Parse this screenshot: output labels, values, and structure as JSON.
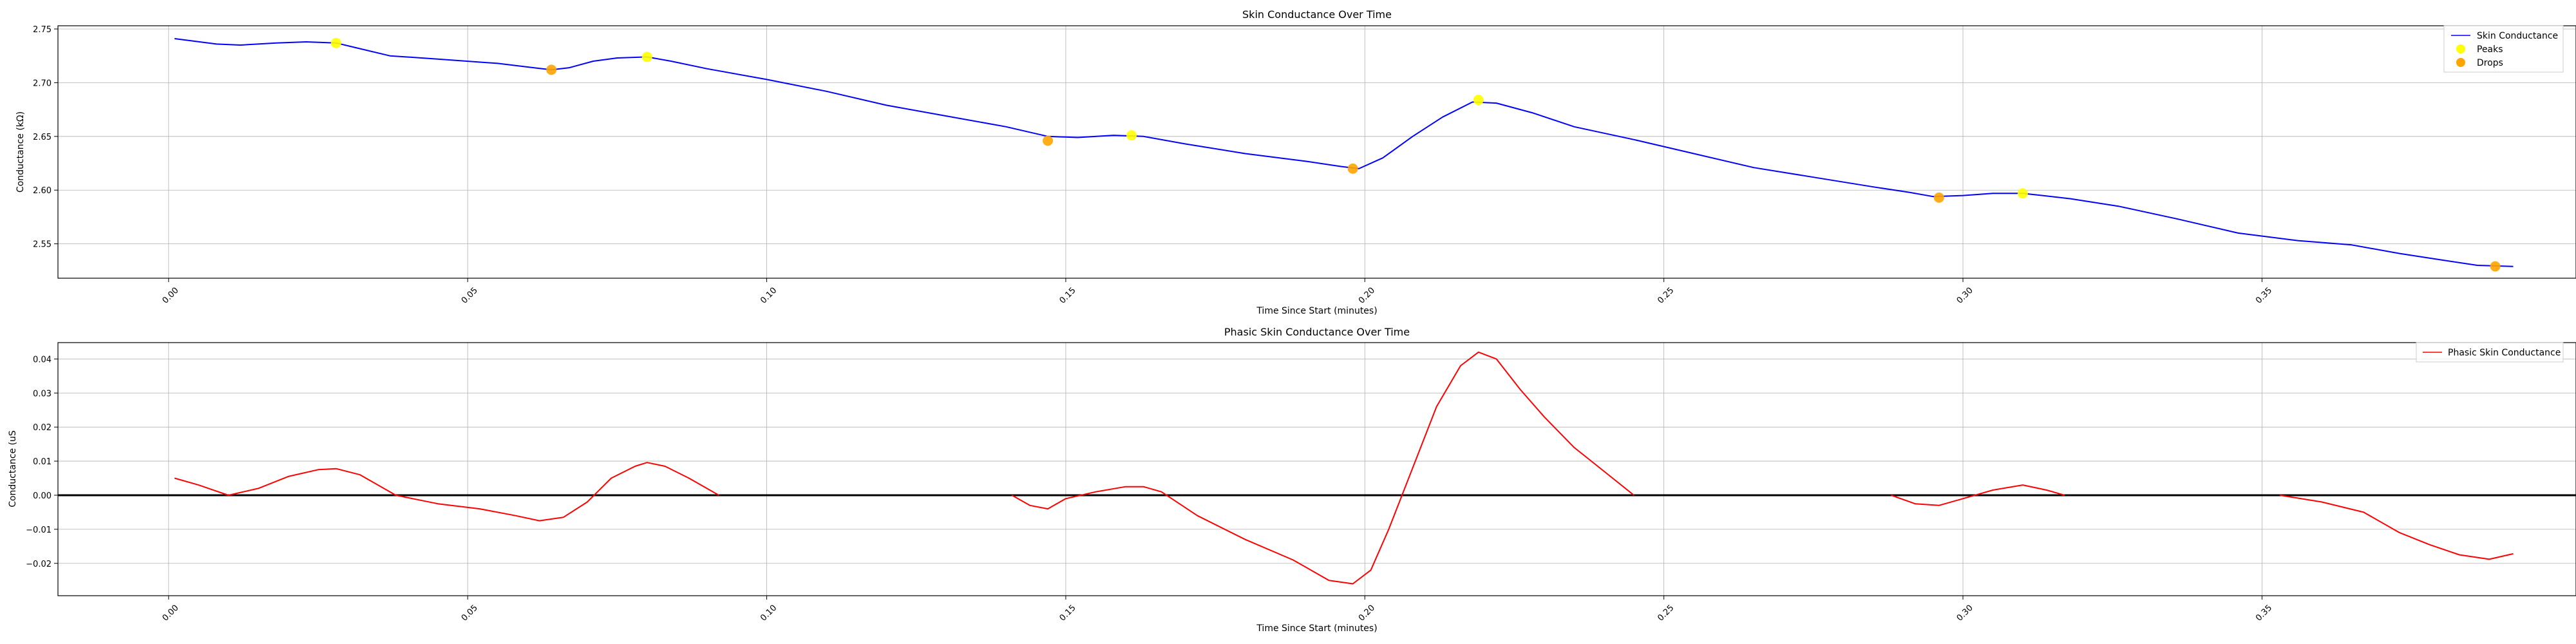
{
  "chart_data": [
    {
      "type": "line",
      "title": "Skin Conductance Over Time",
      "xlabel": "Time Since Start (minutes)",
      "ylabel": "Conductance (kΩ)",
      "xlim": [
        -0.0185,
        0.4025
      ],
      "ylim": [
        2.518,
        2.753
      ],
      "xticks": [
        0.0,
        0.05,
        0.1,
        0.15,
        0.2,
        0.25,
        0.3,
        0.35
      ],
      "xtick_labels": [
        "0.00",
        "0.05",
        "0.10",
        "0.15",
        "0.20",
        "0.25",
        "0.30",
        "0.35"
      ],
      "yticks": [
        2.55,
        2.6,
        2.65,
        2.7,
        2.75
      ],
      "ytick_labels": [
        "2.55",
        "2.60",
        "2.65",
        "2.70",
        "2.75"
      ],
      "grid": true,
      "legend_position": "top-right",
      "series": [
        {
          "name": "Skin Conductance",
          "kind": "line",
          "color": "#0000ff",
          "x": [
            0.001,
            0.008,
            0.012,
            0.018,
            0.023,
            0.028,
            0.031,
            0.037,
            0.045,
            0.055,
            0.061,
            0.064,
            0.067,
            0.071,
            0.075,
            0.08,
            0.084,
            0.09,
            0.1,
            0.11,
            0.12,
            0.13,
            0.14,
            0.147,
            0.152,
            0.158,
            0.163,
            0.17,
            0.18,
            0.19,
            0.196,
            0.199,
            0.203,
            0.208,
            0.213,
            0.218,
            0.222,
            0.228,
            0.235,
            0.245,
            0.255,
            0.265,
            0.275,
            0.285,
            0.291,
            0.295,
            0.3,
            0.305,
            0.31,
            0.318,
            0.326,
            0.336,
            0.346,
            0.356,
            0.365,
            0.373,
            0.38,
            0.386,
            0.392
          ],
          "y": [
            2.741,
            2.736,
            2.735,
            2.737,
            2.738,
            2.737,
            2.733,
            2.725,
            2.722,
            2.718,
            2.714,
            2.712,
            2.714,
            2.72,
            2.723,
            2.724,
            2.72,
            2.713,
            2.703,
            2.692,
            2.679,
            2.669,
            2.659,
            2.65,
            2.649,
            2.651,
            2.65,
            2.643,
            2.634,
            2.627,
            2.622,
            2.62,
            2.63,
            2.65,
            2.668,
            2.682,
            2.681,
            2.672,
            2.659,
            2.647,
            2.634,
            2.621,
            2.612,
            2.603,
            2.598,
            2.594,
            2.595,
            2.597,
            2.597,
            2.592,
            2.585,
            2.573,
            2.56,
            2.553,
            2.549,
            2.541,
            2.535,
            2.53,
            2.529
          ]
        },
        {
          "name": "Peaks",
          "kind": "scatter",
          "color": "#ffff00",
          "x": [
            0.028,
            0.08,
            0.161,
            0.219,
            0.31
          ],
          "y": [
            2.737,
            2.724,
            2.651,
            2.684,
            2.597
          ]
        },
        {
          "name": "Drops",
          "kind": "scatter",
          "color": "#ffa500",
          "x": [
            0.064,
            0.147,
            0.198,
            0.296,
            0.389
          ],
          "y": [
            2.712,
            2.646,
            2.62,
            2.593,
            2.529
          ]
        }
      ]
    },
    {
      "type": "line",
      "title": "Phasic Skin Conductance Over Time",
      "xlabel": "Time Since Start (minutes)",
      "ylabel": "Conductance (uS",
      "xlim": [
        -0.0185,
        0.4025
      ],
      "ylim": [
        -0.0295,
        0.0448
      ],
      "xticks": [
        0.0,
        0.05,
        0.1,
        0.15,
        0.2,
        0.25,
        0.3,
        0.35
      ],
      "xtick_labels": [
        "0.00",
        "0.05",
        "0.10",
        "0.15",
        "0.20",
        "0.25",
        "0.30",
        "0.35"
      ],
      "yticks": [
        -0.02,
        -0.01,
        0.0,
        0.01,
        0.02,
        0.03,
        0.04
      ],
      "ytick_labels": [
        "−0.02",
        "−0.01",
        "0.00",
        "0.01",
        "0.02",
        "0.03",
        "0.04"
      ],
      "grid": true,
      "zero_line": true,
      "legend_position": "top-right",
      "series": [
        {
          "name": "Phasic Skin Conductance",
          "kind": "line",
          "color": "#ff0000",
          "segments": [
            {
              "x": [
                0.001,
                0.005,
                0.01,
                0.015,
                0.02,
                0.025,
                0.028,
                0.032,
                0.038,
                0.045,
                0.052,
                0.058,
                0.062,
                0.066,
                0.07,
                0.074,
                0.078,
                0.08,
                0.083,
                0.087,
                0.092
              ],
              "y": [
                0.005,
                0.003,
                0.0,
                0.002,
                0.0055,
                0.0075,
                0.0078,
                0.006,
                0.0,
                -0.0025,
                -0.004,
                -0.006,
                -0.0075,
                -0.0065,
                -0.002,
                0.005,
                0.0085,
                0.0096,
                0.0085,
                0.005,
                0.0
              ]
            },
            {
              "x": [
                0.141,
                0.144,
                0.147,
                0.15,
                0.155,
                0.16,
                0.163,
                0.166,
                0.172,
                0.18,
                0.188,
                0.194,
                0.198,
                0.201,
                0.204,
                0.208,
                0.212,
                0.216,
                0.219,
                0.222,
                0.226,
                0.23,
                0.235,
                0.24,
                0.245
              ],
              "y": [
                0.0,
                -0.003,
                -0.004,
                -0.001,
                0.001,
                0.0025,
                0.0025,
                0.001,
                -0.006,
                -0.013,
                -0.019,
                -0.025,
                -0.026,
                -0.022,
                -0.01,
                0.008,
                0.026,
                0.038,
                0.042,
                0.04,
                0.031,
                0.023,
                0.014,
                0.007,
                0.0
              ]
            },
            {
              "x": [
                0.288,
                0.292,
                0.296,
                0.3,
                0.305,
                0.31,
                0.314,
                0.317
              ],
              "y": [
                0.0,
                -0.0025,
                -0.003,
                -0.001,
                0.0015,
                0.003,
                0.0015,
                0.0
              ]
            },
            {
              "x": [
                0.353,
                0.36,
                0.367,
                0.373,
                0.378,
                0.383,
                0.388,
                0.392
              ],
              "y": [
                0.0,
                -0.002,
                -0.005,
                -0.011,
                -0.0145,
                -0.0175,
                -0.0188,
                -0.0172
              ]
            }
          ]
        }
      ]
    }
  ]
}
